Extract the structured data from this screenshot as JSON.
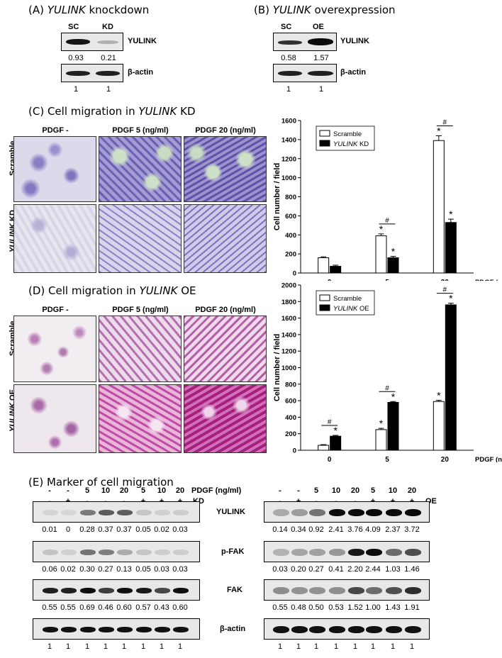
{
  "panelA": {
    "title_prefix": "(A) ",
    "title_gene": "YULINK",
    "title_suffix": " knockdown",
    "lanes": [
      "SC",
      "KD"
    ],
    "protein": "YULINK",
    "loading": "β-actin",
    "values": [
      "0.93",
      "0.21"
    ],
    "loading_values": [
      "1",
      "1"
    ]
  },
  "panelB": {
    "title_prefix": "(B) ",
    "title_gene": "YULINK",
    "title_suffix": " overexpression",
    "lanes": [
      "SC",
      "OE"
    ],
    "protein": "YULINK",
    "loading": "β-actin",
    "values": [
      "0.58",
      "1.57"
    ],
    "loading_values": [
      "1",
      "1"
    ]
  },
  "panelC": {
    "title_prefix": "(C) Cell migration in ",
    "title_gene": "YULINK",
    "title_suffix": " KD",
    "columns": [
      "PDGF -",
      "PDGF 5 (ng/ml)",
      "PDGF 20 (ng/ml)"
    ],
    "row1": "Scramble",
    "row2_gene": "YULINK",
    "row2_suffix": " KD"
  },
  "panelD": {
    "title_prefix": "(D) Cell migration in ",
    "title_gene": "YULINK",
    "title_suffix": " OE",
    "columns": [
      "PDGF -",
      "PDGF 5 (ng/ml)",
      "PDGF 20 (ng/ml)"
    ],
    "row1": "Scramble",
    "row2_gene": "YULINK",
    "row2_suffix": " OE"
  },
  "chart_data": [
    {
      "type": "bar",
      "categories": [
        "0",
        "5",
        "20"
      ],
      "x_unit": "PDGF (ng/ml)",
      "ylabel": "Cell number / field",
      "ylim": [
        0,
        1600
      ],
      "yticks": [
        0,
        200,
        400,
        600,
        800,
        1000,
        1200,
        1400,
        1600
      ],
      "legend_position": "top-left",
      "series": [
        {
          "name": "Scramble",
          "values": [
            160,
            390,
            1390
          ],
          "errors": [
            10,
            20,
            50
          ],
          "color": "#ffffff"
        },
        {
          "name_gene": "YULINK",
          "name_suffix": " KD",
          "values": [
            70,
            160,
            530
          ],
          "errors": [
            12,
            15,
            35
          ],
          "color": "#000000"
        }
      ],
      "significance": {
        "star": "*",
        "hash": "#"
      }
    },
    {
      "type": "bar",
      "categories": [
        "0",
        "5",
        "20"
      ],
      "x_unit": "PDGF (ng/ml)",
      "ylabel": "Cell number / field",
      "ylim": [
        0,
        2000
      ],
      "yticks": [
        0,
        200,
        400,
        600,
        800,
        1000,
        1200,
        1400,
        1600,
        1800,
        2000
      ],
      "legend_position": "top-left",
      "series": [
        {
          "name": "Scramble",
          "values": [
            60,
            250,
            590
          ],
          "errors": [
            8,
            15,
            15
          ],
          "color": "#ffffff"
        },
        {
          "name_gene": "YULINK",
          "name_suffix": " OE",
          "values": [
            170,
            580,
            1760
          ],
          "errors": [
            10,
            10,
            20
          ],
          "color": "#000000"
        }
      ],
      "significance": {
        "star": "*",
        "hash": "#"
      }
    }
  ],
  "panelE": {
    "title": "(E)  Marker of cell migration",
    "pdgf_label": "PDGF (ng/ml)",
    "kd_label": "KD",
    "oe_label": "OE",
    "left_pdgf": [
      "-",
      "-",
      "5",
      "10",
      "20",
      "5",
      "10",
      "20"
    ],
    "left_kd": [
      "-",
      "+",
      "-",
      "-",
      "-",
      "+",
      "+",
      "+"
    ],
    "right_pdgf": [
      "-",
      "-",
      "5",
      "10",
      "20",
      "5",
      "10",
      "20"
    ],
    "right_oe": [
      "-",
      "+",
      "-",
      "-",
      "-",
      "+",
      "+",
      "+"
    ],
    "proteins": [
      "YULINK",
      "p-FAK",
      "FAK",
      "β-actin"
    ],
    "left_values": [
      [
        "0.01",
        "0",
        "0.28",
        "0.37",
        "0.37",
        "0.05",
        "0.02",
        "0.03"
      ],
      [
        "0.06",
        "0.02",
        "0.30",
        "0.27",
        "0.13",
        "0.05",
        "0.03",
        "0.03"
      ],
      [
        "0.55",
        "0.55",
        "0.69",
        "0.46",
        "0.60",
        "0.57",
        "0.43",
        "0.60"
      ],
      [
        "1",
        "1",
        "1",
        "1",
        "1",
        "1",
        "1",
        "1"
      ]
    ],
    "right_values": [
      [
        "0.14",
        "0.34",
        "0.92",
        "2.41",
        "3.76",
        "4.09",
        "2.37",
        "3.72"
      ],
      [
        "0.03",
        "0.20",
        "0.27",
        "0.41",
        "2.20",
        "2.44",
        "1.03",
        "1.46"
      ],
      [
        "0.55",
        "0.48",
        "0.50",
        "0.53",
        "1.52",
        "1.00",
        "1.43",
        "1.91"
      ],
      [
        "1",
        "1",
        "1",
        "1",
        "1",
        "1",
        "1",
        "1"
      ]
    ]
  }
}
